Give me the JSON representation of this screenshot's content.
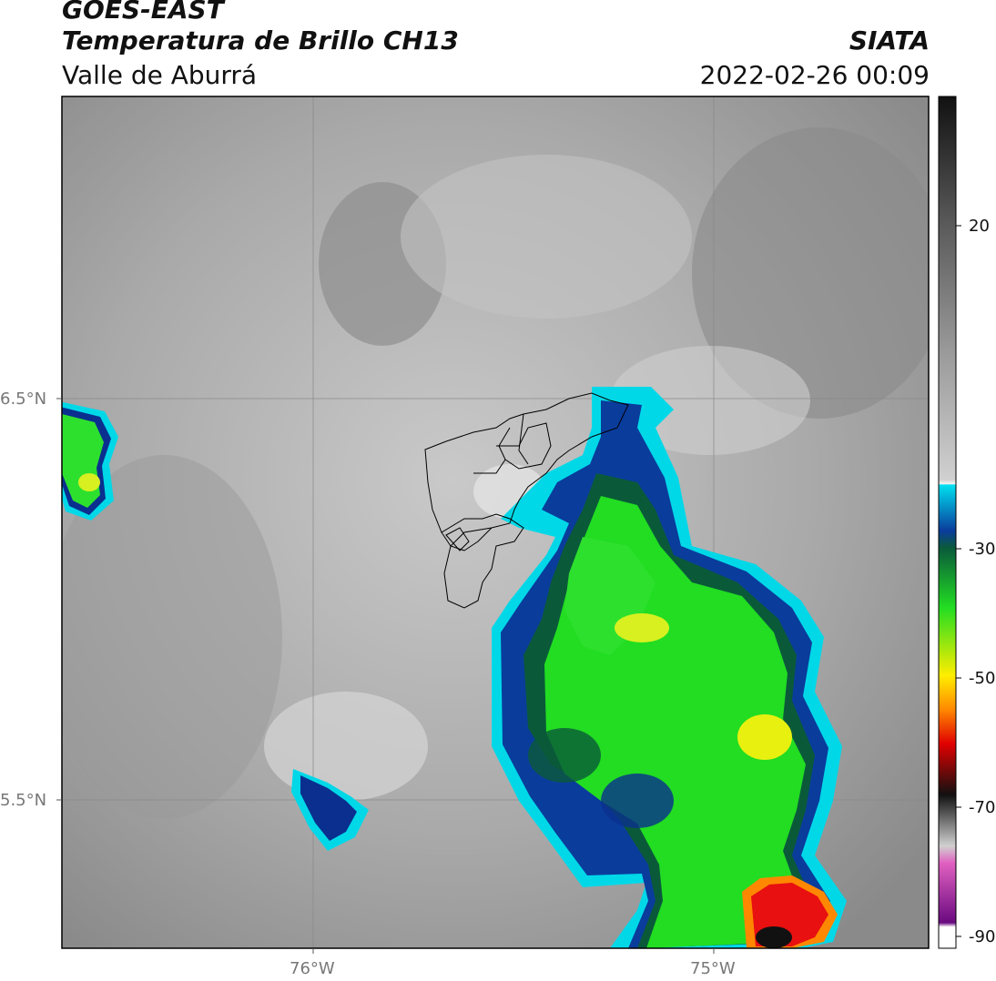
{
  "header": {
    "satellite": "GOES-EAST",
    "product": "Temperatura de Brillo CH13",
    "region": "Valle de Aburrá",
    "agency": "SIATA",
    "datetime": "2022-02-26 00:09"
  },
  "axes": {
    "lat_labels": [
      "6.5°N",
      "5.5°N"
    ],
    "lon_labels": [
      "76°W",
      "75°W"
    ]
  },
  "colorbar": {
    "ticks": [
      "20",
      "-30",
      "-50",
      "-70",
      "-90"
    ],
    "colors": {
      "cyan": "#00d8e8",
      "blue": "#0a2f8f",
      "green": "#2ee02e",
      "yellow": "#ffe000",
      "red": "#e81010",
      "black": "#111111",
      "magenta": "#b01aa8"
    }
  }
}
